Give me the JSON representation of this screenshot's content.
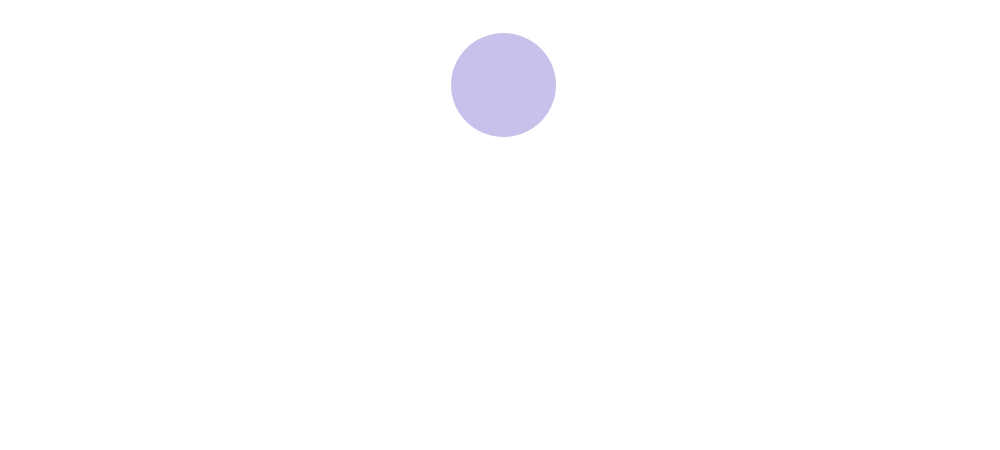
{
  "background_color": "#ffffff",
  "shapes": [
    {
      "kind": "circle",
      "color": "#c9c0ec"
    }
  ]
}
